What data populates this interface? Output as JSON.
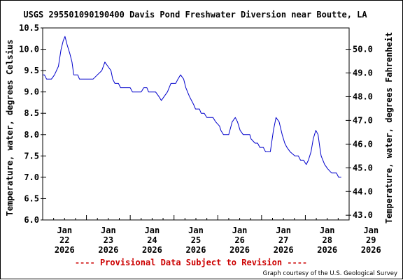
{
  "chart_data": {
    "type": "line",
    "title": "USGS 295501090190400 Davis Pond Freshwater Diversion near Boutte, LA",
    "ylabel_left": "Temperature, water, degrees Celsius",
    "ylabel_right": "Temperature, water, degrees Fahrenheit",
    "ylim": [
      6.0,
      10.5
    ],
    "ylim_right": [
      43.0,
      51.0
    ],
    "xlim": [
      0,
      7
    ],
    "y_ticks": [
      6.0,
      6.5,
      7.0,
      7.5,
      8.0,
      8.5,
      9.0,
      9.5,
      10.0,
      10.5
    ],
    "y_tick_labels": [
      "6.0",
      "6.5",
      "7.0",
      "7.5",
      "8.0",
      "8.5",
      "9.0",
      "9.5",
      "10.0",
      "10.5"
    ],
    "y_right_ticks": [
      43.0,
      44.0,
      45.0,
      46.0,
      47.0,
      48.0,
      49.0,
      50.0
    ],
    "y_right_tick_labels": [
      "43.0",
      "44.0",
      "45.0",
      "46.0",
      "47.0",
      "48.0",
      "49.0",
      "50.0"
    ],
    "x_ticks": [
      {
        "x": 0.5,
        "line1": "Jan",
        "line2": "22",
        "line3": "2026"
      },
      {
        "x": 1.5,
        "line1": "Jan",
        "line2": "23",
        "line3": "2026"
      },
      {
        "x": 2.5,
        "line1": "Jan",
        "line2": "24",
        "line3": "2026"
      },
      {
        "x": 3.5,
        "line1": "Jan",
        "line2": "25",
        "line3": "2026"
      },
      {
        "x": 4.5,
        "line1": "Jan",
        "line2": "26",
        "line3": "2026"
      },
      {
        "x": 5.5,
        "line1": "Jan",
        "line2": "27",
        "line3": "2026"
      },
      {
        "x": 6.5,
        "line1": "Jan",
        "line2": "28",
        "line3": "2026"
      },
      {
        "x": 7.5,
        "line1": "Jan",
        "line2": "29",
        "line3": "2026"
      }
    ],
    "series": [
      {
        "color": "#0000cc",
        "points": [
          [
            0.0,
            9.4
          ],
          [
            0.04,
            9.4
          ],
          [
            0.09,
            9.3
          ],
          [
            0.2,
            9.3
          ],
          [
            0.27,
            9.4
          ],
          [
            0.36,
            9.6
          ],
          [
            0.42,
            10.0
          ],
          [
            0.47,
            10.2
          ],
          [
            0.51,
            10.3
          ],
          [
            0.56,
            10.1
          ],
          [
            0.62,
            9.9
          ],
          [
            0.67,
            9.7
          ],
          [
            0.71,
            9.4
          ],
          [
            0.8,
            9.4
          ],
          [
            0.84,
            9.3
          ],
          [
            1.15,
            9.3
          ],
          [
            1.25,
            9.4
          ],
          [
            1.35,
            9.5
          ],
          [
            1.42,
            9.7
          ],
          [
            1.49,
            9.6
          ],
          [
            1.56,
            9.5
          ],
          [
            1.6,
            9.3
          ],
          [
            1.65,
            9.2
          ],
          [
            1.73,
            9.2
          ],
          [
            1.78,
            9.1
          ],
          [
            2.0,
            9.1
          ],
          [
            2.05,
            9.0
          ],
          [
            2.25,
            9.0
          ],
          [
            2.31,
            9.1
          ],
          [
            2.38,
            9.1
          ],
          [
            2.42,
            9.0
          ],
          [
            2.58,
            9.0
          ],
          [
            2.65,
            8.9
          ],
          [
            2.71,
            8.8
          ],
          [
            2.78,
            8.9
          ],
          [
            2.85,
            9.0
          ],
          [
            2.93,
            9.2
          ],
          [
            3.04,
            9.2
          ],
          [
            3.09,
            9.3
          ],
          [
            3.15,
            9.4
          ],
          [
            3.22,
            9.3
          ],
          [
            3.27,
            9.1
          ],
          [
            3.35,
            8.9
          ],
          [
            3.4,
            8.8
          ],
          [
            3.45,
            8.7
          ],
          [
            3.49,
            8.6
          ],
          [
            3.58,
            8.6
          ],
          [
            3.62,
            8.5
          ],
          [
            3.69,
            8.5
          ],
          [
            3.75,
            8.4
          ],
          [
            3.89,
            8.4
          ],
          [
            3.95,
            8.3
          ],
          [
            4.04,
            8.2
          ],
          [
            4.07,
            8.1
          ],
          [
            4.13,
            8.0
          ],
          [
            4.25,
            8.0
          ],
          [
            4.33,
            8.3
          ],
          [
            4.4,
            8.4
          ],
          [
            4.45,
            8.3
          ],
          [
            4.51,
            8.1
          ],
          [
            4.58,
            8.0
          ],
          [
            4.73,
            8.0
          ],
          [
            4.76,
            7.9
          ],
          [
            4.85,
            7.8
          ],
          [
            4.91,
            7.8
          ],
          [
            4.96,
            7.7
          ],
          [
            5.04,
            7.7
          ],
          [
            5.09,
            7.6
          ],
          [
            5.2,
            7.6
          ],
          [
            5.27,
            8.1
          ],
          [
            5.33,
            8.4
          ],
          [
            5.4,
            8.3
          ],
          [
            5.47,
            8.0
          ],
          [
            5.53,
            7.8
          ],
          [
            5.58,
            7.7
          ],
          [
            5.65,
            7.6
          ],
          [
            5.76,
            7.5
          ],
          [
            5.84,
            7.5
          ],
          [
            5.89,
            7.4
          ],
          [
            5.96,
            7.4
          ],
          [
            6.02,
            7.3
          ],
          [
            6.07,
            7.4
          ],
          [
            6.13,
            7.6
          ],
          [
            6.18,
            7.9
          ],
          [
            6.24,
            8.1
          ],
          [
            6.29,
            8.0
          ],
          [
            6.33,
            7.7
          ],
          [
            6.36,
            7.5
          ],
          [
            6.44,
            7.3
          ],
          [
            6.51,
            7.2
          ],
          [
            6.6,
            7.1
          ],
          [
            6.71,
            7.1
          ],
          [
            6.76,
            7.0
          ],
          [
            6.82,
            7.0
          ]
        ]
      }
    ],
    "footer_note": "---- Provisional Data Subject to Revision ----",
    "credit": "Graph courtesy of the U.S. Geological Survey",
    "grid": false,
    "line_color": "#0000cc",
    "note_color": "#cc0000"
  }
}
